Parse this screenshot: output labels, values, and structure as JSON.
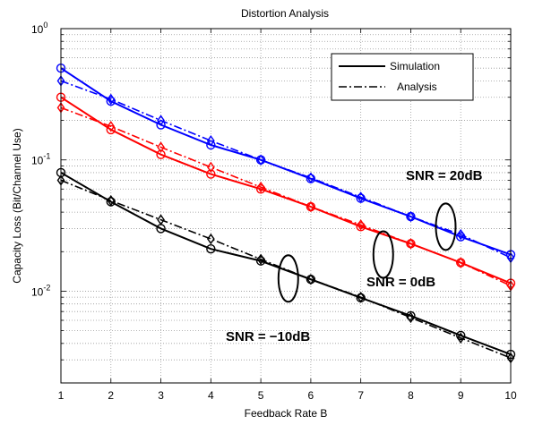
{
  "chart_data": {
    "type": "line",
    "title": "Distortion Analysis",
    "xlabel": "Feedback Rate B",
    "ylabel": "Capacity Loss (Bit/Channel Use)",
    "x": [
      1,
      2,
      3,
      4,
      5,
      6,
      7,
      8,
      9,
      10
    ],
    "xlim": [
      1,
      10
    ],
    "ylim": [
      0.002,
      1
    ],
    "yscale": "log",
    "grid": true,
    "x_ticks": [
      "1",
      "2",
      "3",
      "4",
      "5",
      "6",
      "7",
      "8",
      "9",
      "10"
    ],
    "y_ticks": [
      {
        "base": "10",
        "exp": "0",
        "value": 1
      },
      {
        "base": "10",
        "exp": "-1",
        "value": 0.1
      },
      {
        "base": "10",
        "exp": "-2",
        "value": 0.01
      }
    ],
    "legend": {
      "position": "top-right",
      "entries": [
        {
          "label": "Simulation",
          "style": "solid"
        },
        {
          "label": "Analysis",
          "style": "dashdot"
        }
      ]
    },
    "series": [
      {
        "color": "#0000ff",
        "style": "solid",
        "marker": "circle",
        "values": [
          0.5,
          0.28,
          0.185,
          0.13,
          0.1,
          0.072,
          0.051,
          0.037,
          0.026,
          0.019
        ]
      },
      {
        "color": "#0000ff",
        "style": "dashdot",
        "marker": "diamond",
        "values": [
          0.4,
          0.29,
          0.2,
          0.14,
          0.1,
          0.073,
          0.052,
          0.037,
          0.027,
          0.018
        ]
      },
      {
        "color": "#ff0000",
        "style": "solid",
        "marker": "circle",
        "values": [
          0.3,
          0.17,
          0.11,
          0.078,
          0.06,
          0.044,
          0.031,
          0.023,
          0.0165,
          0.0115
        ]
      },
      {
        "color": "#ff0000",
        "style": "dashdot",
        "marker": "diamond",
        "values": [
          0.25,
          0.18,
          0.125,
          0.088,
          0.062,
          0.044,
          0.032,
          0.023,
          0.0165,
          0.011
        ]
      },
      {
        "color": "#000000",
        "style": "solid",
        "marker": "circle",
        "values": [
          0.08,
          0.048,
          0.03,
          0.021,
          0.017,
          0.0123,
          0.0089,
          0.0065,
          0.0046,
          0.0033
        ]
      },
      {
        "color": "#000000",
        "style": "dashdot",
        "marker": "diamond",
        "values": [
          0.07,
          0.049,
          0.035,
          0.025,
          0.0175,
          0.0123,
          0.009,
          0.0063,
          0.0044,
          0.0031
        ]
      }
    ],
    "annotations": [
      {
        "text": "SNR = 20dB"
      },
      {
        "text": "SNR = 0dB"
      },
      {
        "text": "SNR = −10dB"
      }
    ],
    "ellipses": [
      {
        "x": 8.7,
        "y": 0.031
      },
      {
        "x": 7.45,
        "y": 0.019
      },
      {
        "x": 5.55,
        "y": 0.0125
      }
    ]
  }
}
